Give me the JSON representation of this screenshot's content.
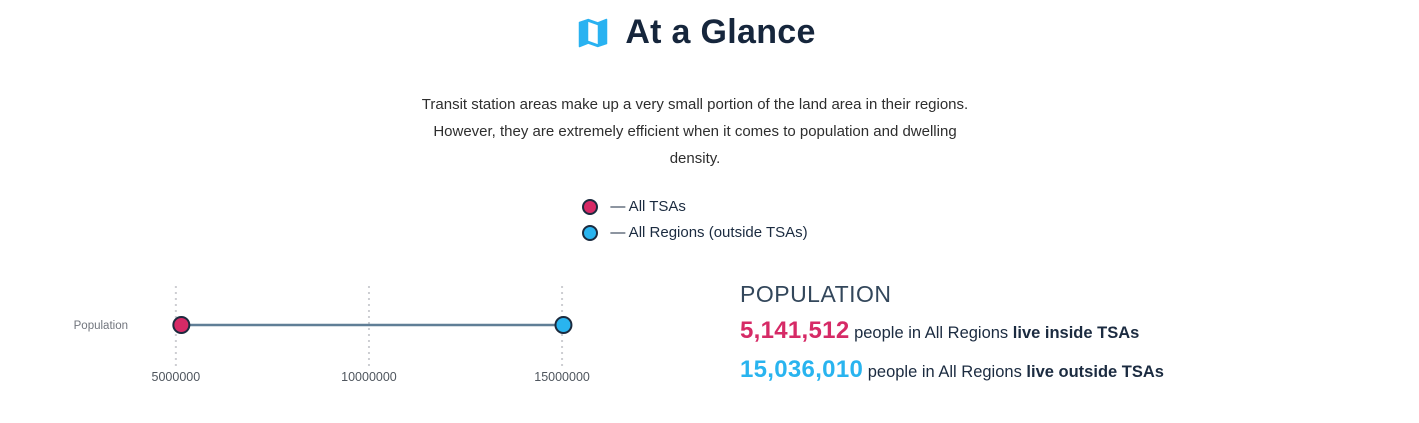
{
  "header": {
    "title": "At a Glance"
  },
  "intro": {
    "lines": [
      "Transit station areas make up a very small portion of the land area in their regions.",
      "However, they are extremely efficient when it comes to population and dwelling",
      "density."
    ]
  },
  "legend": {
    "items": [
      {
        "label": "— All TSAs",
        "color": "#d62a66"
      },
      {
        "label": "— All Regions (outside TSAs)",
        "color": "#29b4ef"
      }
    ]
  },
  "chart_data": {
    "type": "dumbbell",
    "title": "",
    "row_label": "Population",
    "series": [
      {
        "name": "All TSAs",
        "value": 5141512,
        "color": "#d62a66"
      },
      {
        "name": "All Regions (outside TSAs)",
        "value": 15036010,
        "color": "#29b4ef"
      }
    ],
    "x_ticks": [
      5000000,
      10000000,
      15000000
    ],
    "x_tick_labels": [
      "5000000",
      "10000000",
      "15000000"
    ],
    "xlim": [
      2000000,
      16500000
    ],
    "grid": "dotted-vertical",
    "legend_position": "top-center",
    "connector_color": "#5f7e96",
    "dot_border_color": "#1c2b3f"
  },
  "stats": {
    "heading": "POPULATION",
    "rows": [
      {
        "value": "5,141,512",
        "color": "#d62a66",
        "middle": "people in All Regions",
        "emphasis": "live inside TSAs"
      },
      {
        "value": "15,036,010",
        "color": "#29b4ef",
        "middle": "people in All Regions",
        "emphasis": "live outside TSAs"
      }
    ]
  },
  "colors": {
    "title_navy": "#16263c",
    "body_text": "#2e2e2e",
    "navy_text": "#1b2b40",
    "heading_slate": "#33475b",
    "icon_blue": "#29b2f1",
    "axis_label_gray": "#71757d",
    "tick_text_gray": "#4f565e",
    "gridline_gray": "#cdced2"
  }
}
